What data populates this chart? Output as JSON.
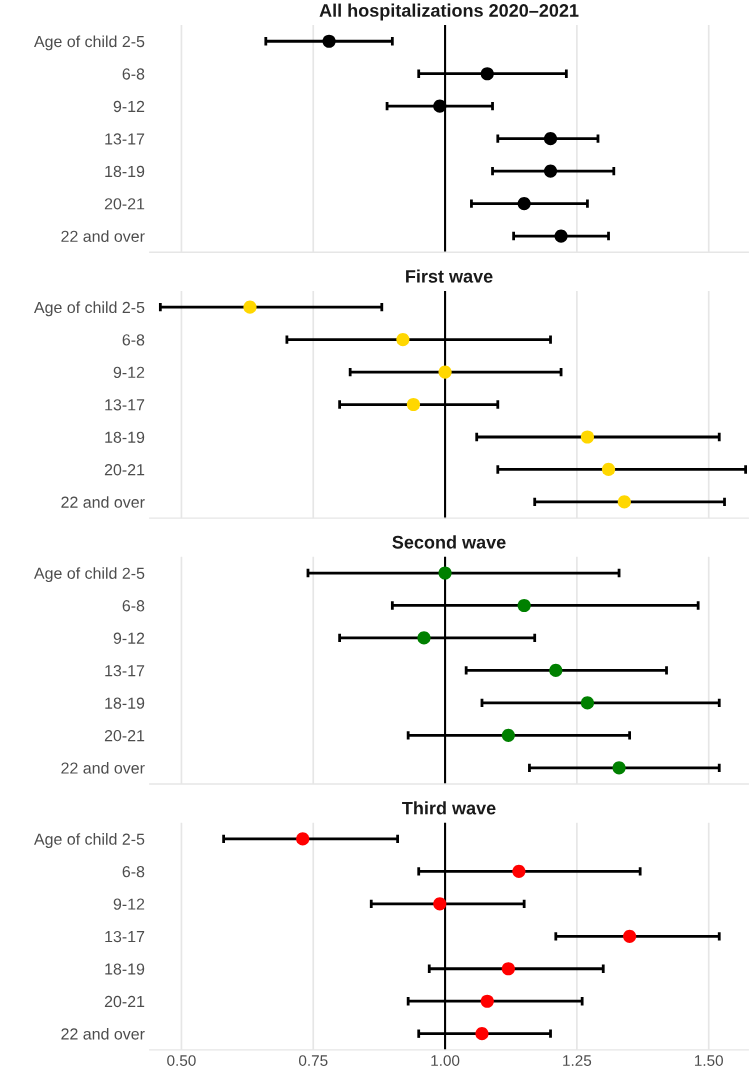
{
  "chart_data": [
    {
      "type": "scatter",
      "title": "All hospitalizations 2020–2021",
      "orientation": "horizontal",
      "categories": [
        "Age of child 2-5",
        "6-8",
        "9-12",
        "13-17",
        "18-19",
        "20-21",
        "22 and over"
      ],
      "series": [
        {
          "color": "#000000",
          "values": [
            0.78,
            1.08,
            0.99,
            1.2,
            1.2,
            1.15,
            1.22
          ],
          "errors": [
            [
              0.66,
              0.9
            ],
            [
              0.95,
              1.23
            ],
            [
              0.89,
              1.09
            ],
            [
              1.1,
              1.29
            ],
            [
              1.09,
              1.32
            ],
            [
              1.05,
              1.27
            ],
            [
              1.13,
              1.31
            ]
          ]
        }
      ],
      "xlim": [
        0.44,
        1.575
      ],
      "xticks": [
        {
          "value": 0.5,
          "label": null
        },
        {
          "value": 0.75,
          "label": null
        },
        {
          "value": 1.0,
          "label": null
        },
        {
          "value": 1.25,
          "label": null
        },
        {
          "value": 1.5,
          "label": null
        }
      ],
      "ref_lines": [
        {
          "axis": "x",
          "value": 1.0,
          "color": "#000000"
        }
      ],
      "grid": "x",
      "marker": "circle",
      "tick_labels": "y"
    },
    {
      "type": "scatter",
      "title": "First wave",
      "orientation": "horizontal",
      "categories": [
        "Age of child 2-5",
        "6-8",
        "9-12",
        "13-17",
        "18-19",
        "20-21",
        "22 and over"
      ],
      "series": [
        {
          "color": "#ffd700",
          "values": [
            0.63,
            0.92,
            1.0,
            0.94,
            1.27,
            1.31,
            1.34
          ],
          "errors": [
            [
              0.46,
              0.88
            ],
            [
              0.7,
              1.2
            ],
            [
              0.82,
              1.22
            ],
            [
              0.8,
              1.1
            ],
            [
              1.06,
              1.52
            ],
            [
              1.1,
              1.57
            ],
            [
              1.17,
              1.53
            ]
          ]
        }
      ],
      "xlim": [
        0.44,
        1.575
      ],
      "xticks": [
        {
          "value": 0.5,
          "label": null
        },
        {
          "value": 0.75,
          "label": null
        },
        {
          "value": 1.0,
          "label": null
        },
        {
          "value": 1.25,
          "label": null
        },
        {
          "value": 1.5,
          "label": null
        }
      ],
      "ref_lines": [
        {
          "axis": "x",
          "value": 1.0,
          "color": "#000000"
        }
      ],
      "grid": "x",
      "marker": "circle",
      "tick_labels": "y"
    },
    {
      "type": "scatter",
      "title": "Second wave",
      "orientation": "horizontal",
      "categories": [
        "Age of child 2-5",
        "6-8",
        "9-12",
        "13-17",
        "18-19",
        "20-21",
        "22 and over"
      ],
      "series": [
        {
          "color": "#008000",
          "values": [
            1.0,
            1.15,
            0.96,
            1.21,
            1.27,
            1.12,
            1.33
          ],
          "errors": [
            [
              0.74,
              1.33
            ],
            [
              0.9,
              1.48
            ],
            [
              0.8,
              1.17
            ],
            [
              1.04,
              1.42
            ],
            [
              1.07,
              1.52
            ],
            [
              0.93,
              1.35
            ],
            [
              1.16,
              1.52
            ]
          ]
        }
      ],
      "xlim": [
        0.44,
        1.575
      ],
      "xticks": [
        {
          "value": 0.5,
          "label": null
        },
        {
          "value": 0.75,
          "label": null
        },
        {
          "value": 1.0,
          "label": null
        },
        {
          "value": 1.25,
          "label": null
        },
        {
          "value": 1.5,
          "label": null
        }
      ],
      "ref_lines": [
        {
          "axis": "x",
          "value": 1.0,
          "color": "#000000"
        }
      ],
      "grid": "x",
      "marker": "circle",
      "tick_labels": "y"
    },
    {
      "type": "scatter",
      "title": "Third wave",
      "orientation": "horizontal",
      "categories": [
        "Age of child 2-5",
        "6-8",
        "9-12",
        "13-17",
        "18-19",
        "20-21",
        "22 and over"
      ],
      "series": [
        {
          "color": "#ff0000",
          "values": [
            0.73,
            1.14,
            0.99,
            1.35,
            1.12,
            1.08,
            1.07
          ],
          "errors": [
            [
              0.58,
              0.91
            ],
            [
              0.95,
              1.37
            ],
            [
              0.86,
              1.15
            ],
            [
              1.21,
              1.52
            ],
            [
              0.97,
              1.3
            ],
            [
              0.93,
              1.26
            ],
            [
              0.95,
              1.2
            ]
          ]
        }
      ],
      "xlim": [
        0.44,
        1.575
      ],
      "xticks": [
        {
          "value": 0.5,
          "label": "0.50"
        },
        {
          "value": 0.75,
          "label": "0.75"
        },
        {
          "value": 1.0,
          "label": "1.00"
        },
        {
          "value": 1.25,
          "label": "1.25"
        },
        {
          "value": 1.5,
          "label": "1.50"
        }
      ],
      "ref_lines": [
        {
          "axis": "x",
          "value": 1.0,
          "color": "#000000"
        }
      ],
      "grid": "x",
      "marker": "circle"
    }
  ]
}
